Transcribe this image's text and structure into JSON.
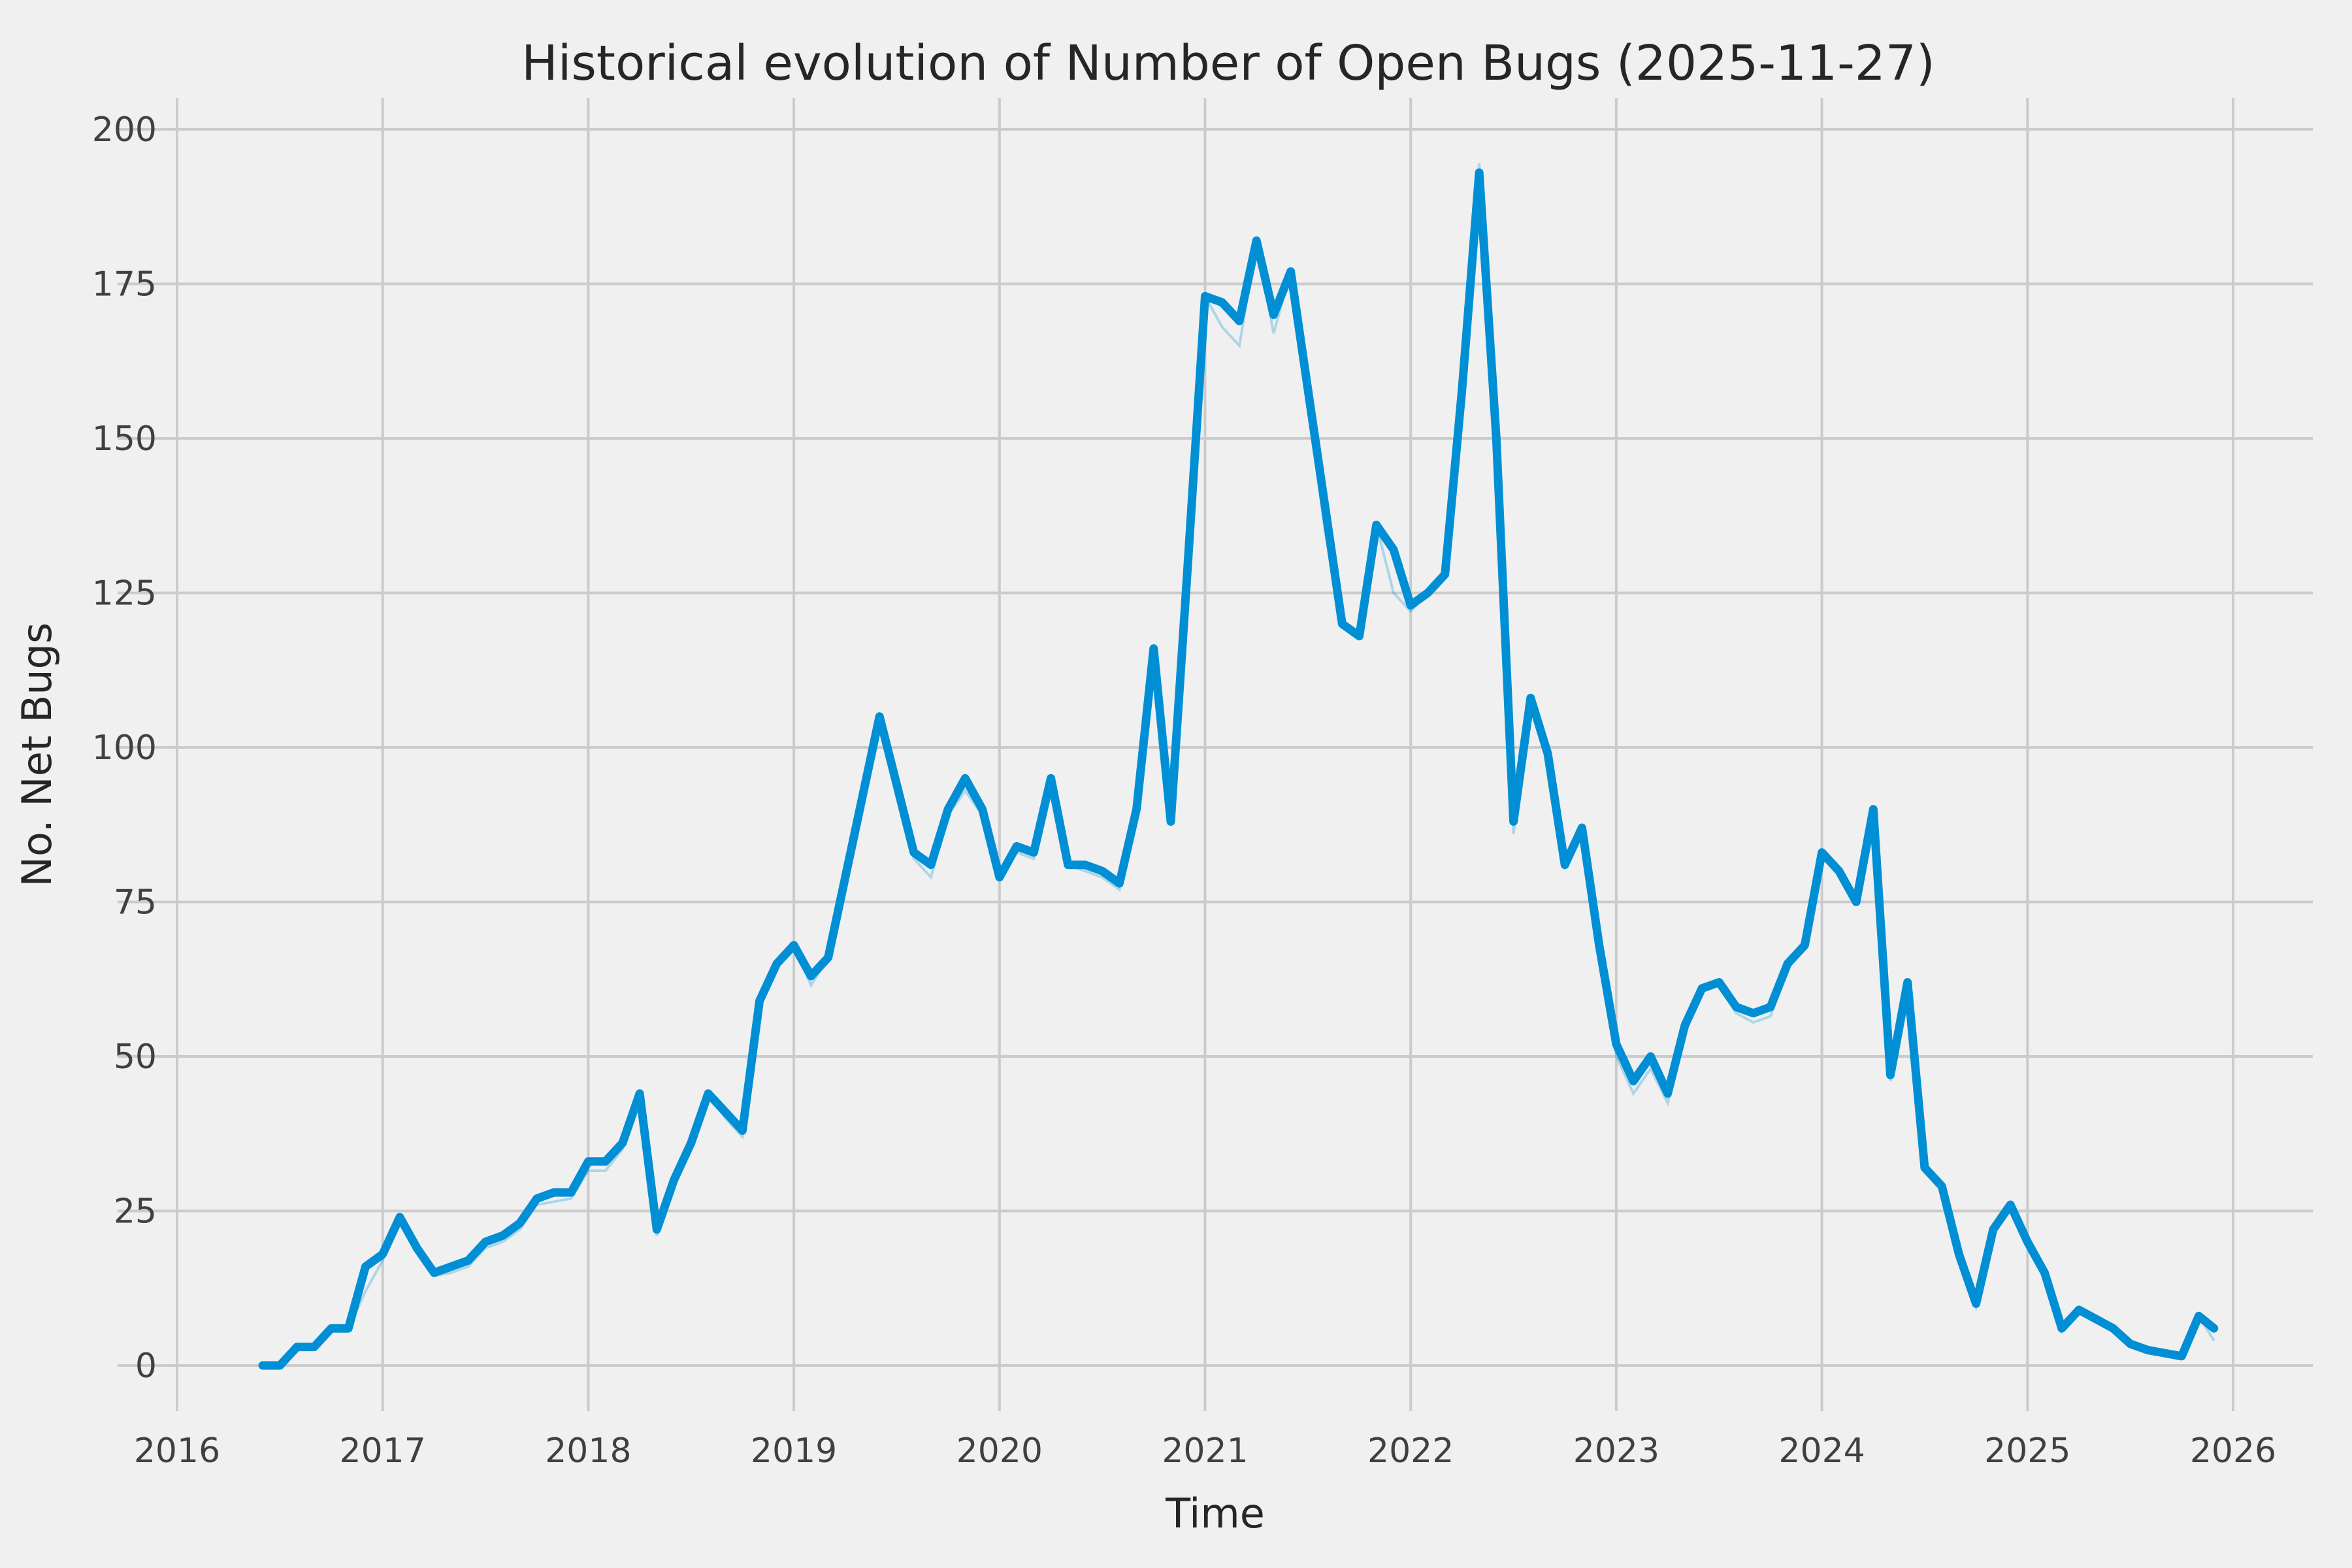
{
  "chart_data": {
    "type": "line",
    "title": "Historical evolution of Number of Open Bugs (2025-11-27)",
    "xlabel": "Time",
    "ylabel": "No. Net Bugs",
    "x_tick_labels": [
      "2016",
      "2017",
      "2018",
      "2019",
      "2020",
      "2021",
      "2022",
      "2023",
      "2024",
      "2025",
      "2026"
    ],
    "y_ticks": [
      0,
      25,
      50,
      75,
      100,
      125,
      150,
      175,
      200
    ],
    "xlim_years": [
      2015.71,
      2026.39
    ],
    "ylim": [
      -7.4,
      205.1
    ],
    "grid": true,
    "legend": "none",
    "background_color": "#f0f0f0",
    "grid_color": "#cbcbcb",
    "line_color": "#008fd5",
    "title_color": "#262626",
    "series": [
      {
        "name": "open-bugs-shadow",
        "role": "faint-secondary-line",
        "points": [
          [
            "2016-06",
            0
          ],
          [
            "2016-07",
            0
          ],
          [
            "2016-08",
            3
          ],
          [
            "2016-09",
            3
          ],
          [
            "2016-10",
            6
          ],
          [
            "2016-11",
            6
          ],
          [
            "2016-12",
            12
          ],
          [
            "2017-01",
            17
          ],
          [
            "2017-02",
            24
          ],
          [
            "2017-03",
            19
          ],
          [
            "2017-04",
            14.5
          ],
          [
            "2017-05",
            15
          ],
          [
            "2017-06",
            16
          ],
          [
            "2017-07",
            19
          ],
          [
            "2017-08",
            20
          ],
          [
            "2017-09",
            22
          ],
          [
            "2017-10",
            26
          ],
          [
            "2017-11",
            26.5
          ],
          [
            "2017-12",
            27
          ],
          [
            "2018-01",
            31.5
          ],
          [
            "2018-02",
            31.5
          ],
          [
            "2018-03",
            35
          ],
          [
            "2018-04",
            44
          ],
          [
            "2018-05",
            21
          ],
          [
            "2018-06",
            30
          ],
          [
            "2018-07",
            36
          ],
          [
            "2018-08",
            44
          ],
          [
            "2018-09",
            40
          ],
          [
            "2018-10",
            37
          ],
          [
            "2018-11",
            59
          ],
          [
            "2018-12",
            65
          ],
          [
            "2019-01",
            68
          ],
          [
            "2019-02",
            61.5
          ],
          [
            "2019-03",
            66
          ],
          [
            "2019-04",
            79
          ],
          [
            "2019-05",
            92
          ],
          [
            "2019-06",
            105
          ],
          [
            "2019-07",
            94
          ],
          [
            "2019-08",
            82
          ],
          [
            "2019-09",
            79
          ],
          [
            "2019-10",
            89
          ],
          [
            "2019-11",
            93
          ],
          [
            "2019-12",
            89
          ],
          [
            "2020-01",
            79
          ],
          [
            "2020-02",
            83
          ],
          [
            "2020-03",
            82
          ],
          [
            "2020-04",
            95
          ],
          [
            "2020-05",
            81
          ],
          [
            "2020-06",
            80
          ],
          [
            "2020-07",
            79
          ],
          [
            "2020-08",
            77
          ],
          [
            "2020-09",
            88
          ],
          [
            "2020-10",
            116
          ],
          [
            "2020-11",
            88
          ],
          [
            "2020-12",
            128
          ],
          [
            "2021-01",
            173
          ],
          [
            "2021-02",
            168
          ],
          [
            "2021-03",
            165
          ],
          [
            "2021-04",
            182
          ],
          [
            "2021-05",
            167
          ],
          [
            "2021-06",
            177
          ],
          [
            "2021-07",
            156
          ],
          [
            "2021-08",
            135
          ],
          [
            "2021-09",
            120
          ],
          [
            "2021-10",
            118
          ],
          [
            "2021-11",
            136
          ],
          [
            "2021-12",
            125
          ],
          [
            "2022-01",
            122
          ],
          [
            "2022-02",
            125
          ],
          [
            "2022-03",
            128
          ],
          [
            "2022-04",
            158
          ],
          [
            "2022-05",
            194.5
          ],
          [
            "2022-06",
            150
          ],
          [
            "2022-07",
            86
          ],
          [
            "2022-08",
            108
          ],
          [
            "2022-09",
            99
          ],
          [
            "2022-10",
            81
          ],
          [
            "2022-11",
            87
          ],
          [
            "2022-12",
            66
          ],
          [
            "2023-01",
            50
          ],
          [
            "2023-02",
            44
          ],
          [
            "2023-03",
            48
          ],
          [
            "2023-04",
            42.5
          ],
          [
            "2023-05",
            54
          ],
          [
            "2023-06",
            61
          ],
          [
            "2023-07",
            62
          ],
          [
            "2023-08",
            57
          ],
          [
            "2023-09",
            55.5
          ],
          [
            "2023-10",
            56.5
          ],
          [
            "2023-11",
            65
          ],
          [
            "2023-12",
            68
          ],
          [
            "2024-01",
            82
          ],
          [
            "2024-02",
            80
          ],
          [
            "2024-03",
            75
          ],
          [
            "2024-04",
            90
          ],
          [
            "2024-05",
            46
          ],
          [
            "2024-06",
            62
          ],
          [
            "2024-07",
            32
          ],
          [
            "2024-08",
            29
          ],
          [
            "2024-09",
            18
          ],
          [
            "2024-10",
            9.5
          ],
          [
            "2024-11",
            22
          ],
          [
            "2024-12",
            26
          ],
          [
            "2025-01",
            20
          ],
          [
            "2025-02",
            15
          ],
          [
            "2025-03",
            5.5
          ],
          [
            "2025-04",
            9
          ],
          [
            "2025-05",
            7.5
          ],
          [
            "2025-06",
            6
          ],
          [
            "2025-07",
            3.5
          ],
          [
            "2025-08",
            2.5
          ],
          [
            "2025-09",
            2
          ],
          [
            "2025-10",
            1.5
          ],
          [
            "2025-11",
            8
          ],
          [
            "2025-11-27",
            4
          ]
        ]
      },
      {
        "name": "open-bugs",
        "role": "main-line",
        "points": [
          [
            "2016-06",
            0
          ],
          [
            "2016-07",
            0
          ],
          [
            "2016-08",
            3
          ],
          [
            "2016-09",
            3
          ],
          [
            "2016-10",
            6
          ],
          [
            "2016-11",
            6
          ],
          [
            "2016-12",
            16
          ],
          [
            "2017-01",
            18
          ],
          [
            "2017-02",
            24
          ],
          [
            "2017-03",
            19
          ],
          [
            "2017-04",
            15
          ],
          [
            "2017-05",
            16
          ],
          [
            "2017-06",
            17
          ],
          [
            "2017-07",
            20
          ],
          [
            "2017-08",
            21
          ],
          [
            "2017-09",
            23
          ],
          [
            "2017-10",
            27
          ],
          [
            "2017-11",
            28
          ],
          [
            "2017-12",
            28
          ],
          [
            "2018-01",
            33
          ],
          [
            "2018-02",
            33
          ],
          [
            "2018-03",
            36
          ],
          [
            "2018-04",
            44
          ],
          [
            "2018-05",
            22
          ],
          [
            "2018-06",
            30
          ],
          [
            "2018-07",
            36
          ],
          [
            "2018-08",
            44
          ],
          [
            "2018-09",
            41
          ],
          [
            "2018-10",
            38
          ],
          [
            "2018-11",
            59
          ],
          [
            "2018-12",
            65
          ],
          [
            "2019-01",
            68
          ],
          [
            "2019-02",
            63
          ],
          [
            "2019-03",
            66
          ],
          [
            "2019-04",
            79
          ],
          [
            "2019-05",
            92
          ],
          [
            "2019-06",
            105
          ],
          [
            "2019-07",
            94
          ],
          [
            "2019-08",
            83
          ],
          [
            "2019-09",
            81
          ],
          [
            "2019-10",
            90
          ],
          [
            "2019-11",
            95
          ],
          [
            "2019-12",
            90
          ],
          [
            "2020-01",
            79
          ],
          [
            "2020-02",
            84
          ],
          [
            "2020-03",
            83
          ],
          [
            "2020-04",
            95
          ],
          [
            "2020-05",
            81
          ],
          [
            "2020-06",
            81
          ],
          [
            "2020-07",
            80
          ],
          [
            "2020-08",
            78
          ],
          [
            "2020-09",
            90
          ],
          [
            "2020-10",
            116
          ],
          [
            "2020-11",
            88
          ],
          [
            "2020-12",
            130
          ],
          [
            "2021-01",
            173
          ],
          [
            "2021-02",
            172
          ],
          [
            "2021-03",
            169
          ],
          [
            "2021-04",
            182
          ],
          [
            "2021-05",
            170
          ],
          [
            "2021-06",
            177
          ],
          [
            "2021-07",
            158
          ],
          [
            "2021-08",
            139
          ],
          [
            "2021-09",
            120
          ],
          [
            "2021-10",
            118
          ],
          [
            "2021-11",
            136
          ],
          [
            "2021-12",
            132
          ],
          [
            "2022-01",
            123
          ],
          [
            "2022-02",
            125
          ],
          [
            "2022-03",
            128
          ],
          [
            "2022-04",
            158
          ],
          [
            "2022-05",
            193
          ],
          [
            "2022-06",
            150
          ],
          [
            "2022-07",
            88
          ],
          [
            "2022-08",
            108
          ],
          [
            "2022-09",
            99
          ],
          [
            "2022-10",
            81
          ],
          [
            "2022-11",
            87
          ],
          [
            "2022-12",
            68
          ],
          [
            "2023-01",
            52
          ],
          [
            "2023-02",
            46
          ],
          [
            "2023-03",
            50
          ],
          [
            "2023-04",
            44
          ],
          [
            "2023-05",
            55
          ],
          [
            "2023-06",
            61
          ],
          [
            "2023-07",
            62
          ],
          [
            "2023-08",
            58
          ],
          [
            "2023-09",
            57
          ],
          [
            "2023-10",
            58
          ],
          [
            "2023-11",
            65
          ],
          [
            "2023-12",
            68
          ],
          [
            "2024-01",
            83
          ],
          [
            "2024-02",
            80
          ],
          [
            "2024-03",
            75
          ],
          [
            "2024-04",
            90
          ],
          [
            "2024-05",
            47
          ],
          [
            "2024-06",
            62
          ],
          [
            "2024-07",
            32
          ],
          [
            "2024-08",
            29
          ],
          [
            "2024-09",
            18
          ],
          [
            "2024-10",
            10
          ],
          [
            "2024-11",
            22
          ],
          [
            "2024-12",
            26
          ],
          [
            "2025-01",
            20
          ],
          [
            "2025-02",
            15
          ],
          [
            "2025-03",
            6
          ],
          [
            "2025-04",
            9
          ],
          [
            "2025-05",
            7.5
          ],
          [
            "2025-06",
            6
          ],
          [
            "2025-07",
            3.5
          ],
          [
            "2025-08",
            2.5
          ],
          [
            "2025-09",
            2
          ],
          [
            "2025-10",
            1.5
          ],
          [
            "2025-11",
            8
          ],
          [
            "2025-11-27",
            6
          ]
        ]
      }
    ]
  }
}
